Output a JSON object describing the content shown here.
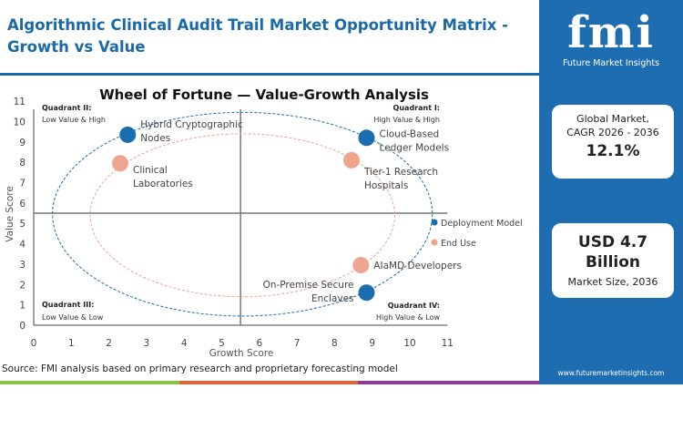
{
  "header": {
    "title": "Algorithmic Clinical Audit Trail Market  Opportunity Matrix - Growth vs Value"
  },
  "sidebar": {
    "logo_text": "fmi",
    "logo_sub": "Future Market Insights",
    "cagr_label1": "Global Market,",
    "cagr_label2": "CAGR 2026 - 2036",
    "cagr_value": "12.1%",
    "size_value1": "USD 4.7",
    "size_value2": "Billion",
    "size_label": "Market Size, 2036",
    "url": "www.futuremarketinsights.com"
  },
  "footer": {
    "source": "Source: FMI analysis based on primary research and proprietary forecasting model"
  },
  "colors": {
    "brand": "#1d6db0",
    "deployment": "#1a6db0",
    "end_use": "#eda58e",
    "stripes": [
      "#8cc04a",
      "#e0643a",
      "#8a3a94"
    ]
  },
  "chart_data": {
    "type": "scatter",
    "title": "Wheel of Fortune — Value-Growth  Analysis",
    "xlabel": "Growth Score",
    "ylabel": "Value Score",
    "xlim": [
      0,
      11
    ],
    "ylim": [
      0,
      11
    ],
    "xticks": [
      "0",
      "1",
      "2",
      "3",
      "4",
      "5",
      "6",
      "7",
      "8",
      "9",
      "10",
      "11"
    ],
    "yticks": [
      "0",
      "1",
      "2",
      "3",
      "4",
      "5",
      "6",
      "7",
      "8",
      "9",
      "10",
      "11"
    ],
    "dividers": {
      "x": 5.5,
      "y": 5.5
    },
    "legend_position": "right",
    "quadrants": [
      {
        "title": "Quadrant I:",
        "sub": "High Value & High"
      },
      {
        "title": "Quadrant II:",
        "sub": "Low Value & High"
      },
      {
        "title": "Quadrant III:",
        "sub": "Low Value & Low"
      },
      {
        "title": "Quadrant IV:",
        "sub": "High Value & Low"
      }
    ],
    "series": [
      {
        "name": "Deployment Model",
        "color": "#1a6db0",
        "points": [
          {
            "label": "Hybrid Cryptographic Nodes",
            "x": 2.5,
            "y": 9.35
          },
          {
            "label": "Cloud-Based Ledger Models",
            "x": 8.85,
            "y": 9.2
          },
          {
            "label": "On-Premise Secure Enclaves",
            "x": 8.85,
            "y": 1.6
          }
        ],
        "ellipse": {
          "cx": 5.55,
          "cy": 5.45,
          "rx": 5.05,
          "ry": 5.0
        }
      },
      {
        "name": "End Use",
        "color": "#eda58e",
        "points": [
          {
            "label": "Clinical Laboratories",
            "x": 2.3,
            "y": 7.95
          },
          {
            "label": "Tier-1 Research Hospitals",
            "x": 8.45,
            "y": 8.1
          },
          {
            "label": "AIaMD Developers",
            "x": 8.7,
            "y": 2.95
          }
        ],
        "ellipse": {
          "cx": 5.55,
          "cy": 5.4,
          "rx": 4.05,
          "ry": 4.0
        }
      }
    ]
  }
}
